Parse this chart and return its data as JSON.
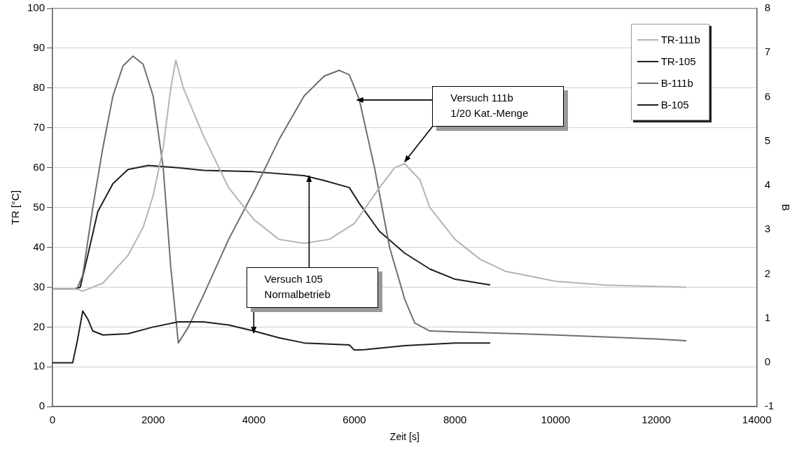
{
  "chart_data": {
    "type": "line",
    "xlabel": "Zeit [s]",
    "ylabel": "TR [°C]",
    "y2label": "B",
    "xlim": [
      0,
      14000
    ],
    "xticks": [
      0,
      2000,
      4000,
      6000,
      8000,
      10000,
      12000,
      14000
    ],
    "ylim": [
      0,
      100
    ],
    "yticks": [
      0,
      10,
      20,
      30,
      40,
      50,
      60,
      70,
      80,
      90,
      100
    ],
    "y2lim": [
      -1,
      8
    ],
    "y2ticks": [
      -1,
      0,
      1,
      2,
      3,
      4,
      5,
      6,
      7,
      8
    ],
    "grid": "y",
    "legend": "top right",
    "marker": "none",
    "series": [
      {
        "name": "TR-111b",
        "color": "#b4b4b4",
        "x": [
          0,
          500,
          600,
          1000,
          1500,
          1800,
          2000,
          2200,
          2350,
          2450,
          2600,
          3000,
          3500,
          4000,
          4500,
          5000,
          5500,
          6000,
          6500,
          6800,
          7000,
          7300,
          7500,
          8000,
          8500,
          9000,
          10000,
          11000,
          12600
        ],
        "values": [
          29.5,
          29.5,
          29,
          31,
          38,
          45,
          53,
          65,
          80,
          87,
          80,
          68,
          55,
          47,
          42,
          41,
          42,
          46,
          55,
          60,
          61,
          57,
          50,
          42,
          37,
          34,
          31.5,
          30.5,
          30
        ]
      },
      {
        "name": "TR-105",
        "color": "#1e1e1e",
        "x": [
          0,
          400,
          500,
          600,
          700,
          800,
          1000,
          1500,
          2000,
          2500,
          3000,
          3500,
          4000,
          4500,
          5000,
          5500,
          5900,
          6000,
          6200,
          7000,
          8000,
          8700
        ],
        "values": [
          11,
          11,
          17,
          24,
          22,
          19,
          18,
          18.3,
          20,
          21.3,
          21.3,
          20.5,
          19,
          17.3,
          16,
          15.7,
          15.5,
          14.2,
          14.3,
          15.3,
          16,
          16
        ]
      },
      {
        "name": "B-111b",
        "color": "#6e6e6e",
        "axis": "y2",
        "x": [
          500,
          600,
          800,
          1000,
          1200,
          1400,
          1600,
          1800,
          2000,
          2200,
          2350,
          2500,
          2700,
          3000,
          3500,
          4000,
          4500,
          5000,
          5400,
          5700,
          5900,
          6100,
          6400,
          6700,
          7000,
          7200,
          7500,
          8000,
          10000,
          12000,
          12600
        ],
        "values": [
          1.7,
          1.97,
          3.5,
          4.85,
          6.02,
          6.7,
          6.92,
          6.74,
          6.02,
          4.4,
          2.15,
          0.44,
          0.8,
          1.52,
          2.78,
          3.86,
          5.03,
          6.02,
          6.47,
          6.6,
          6.5,
          5.93,
          4.4,
          2.6,
          1.43,
          0.89,
          0.71,
          0.69,
          0.62,
          0.53,
          0.49
        ]
      },
      {
        "name": "B-105",
        "color": "#1e1e1e",
        "axis": "y2",
        "x": [
          0,
          450,
          550,
          700,
          900,
          1200,
          1500,
          1900,
          2500,
          3000,
          4000,
          5000,
          5400,
          5900,
          6100,
          6500,
          7000,
          7500,
          8000,
          8700
        ],
        "values": [
          1.66,
          1.66,
          1.7,
          2.42,
          3.41,
          4.04,
          4.36,
          4.45,
          4.4,
          4.34,
          4.31,
          4.22,
          4.11,
          3.95,
          3.59,
          2.96,
          2.47,
          2.11,
          1.88,
          1.75
        ]
      }
    ],
    "annotations": [
      "Versuch 111b\n1/20 Kat.-Menge",
      {
        "text": "Versuch 105\nNormalbetrieb",
        "x": 5100,
        "y": 58
      }
    ]
  }
}
